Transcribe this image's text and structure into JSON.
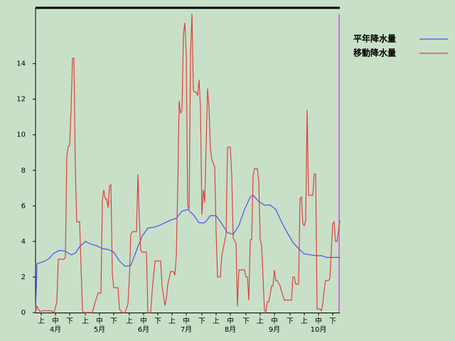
{
  "chart_data": {
    "type": "line",
    "xlim": [
      0,
      214
    ],
    "xticks": [
      {
        "value": 4,
        "label": "上"
      },
      {
        "value": 14,
        "label": "中"
      },
      {
        "value": 24,
        "label": "下"
      },
      {
        "value": 35,
        "label": "上"
      },
      {
        "value": 45,
        "label": "中"
      },
      {
        "value": 55,
        "label": "下"
      },
      {
        "value": 66,
        "label": "上"
      },
      {
        "value": 76,
        "label": "中"
      },
      {
        "value": 86,
        "label": "下"
      },
      {
        "value": 96,
        "label": "上"
      },
      {
        "value": 106,
        "label": "中"
      },
      {
        "value": 117,
        "label": "下"
      },
      {
        "value": 127,
        "label": "上"
      },
      {
        "value": 137,
        "label": "中"
      },
      {
        "value": 148,
        "label": "下"
      },
      {
        "value": 158,
        "label": "上"
      },
      {
        "value": 168,
        "label": "中"
      },
      {
        "value": 179,
        "label": "下"
      },
      {
        "value": 189,
        "label": "上"
      },
      {
        "value": 199,
        "label": "中"
      },
      {
        "value": 209,
        "label": "下"
      }
    ],
    "month_labels": [
      {
        "value": 14,
        "label": "4月"
      },
      {
        "value": 45,
        "label": "5月"
      },
      {
        "value": 76,
        "label": "6月"
      },
      {
        "value": 106,
        "label": "7月"
      },
      {
        "value": 137,
        "label": "8月"
      },
      {
        "value": 168,
        "label": "9月"
      },
      {
        "value": 199,
        "label": "10月"
      }
    ],
    "ylim": [
      0,
      17.1
    ],
    "yticks": [
      0,
      2,
      4,
      6,
      8,
      10,
      12,
      14
    ],
    "series": [
      {
        "name": "平年降水量",
        "color": "#5050e8",
        "x": [
          0,
          1,
          5,
          9,
          13,
          17,
          21,
          25,
          28,
          31,
          35,
          39,
          43,
          47,
          51,
          55,
          59,
          63,
          67,
          71,
          75,
          79,
          83,
          87,
          91,
          95,
          99,
          103,
          107,
          111,
          115,
          119,
          123,
          127,
          131,
          135,
          139,
          143,
          147,
          151,
          153,
          157,
          161,
          165,
          169,
          173,
          177,
          181,
          185,
          189,
          193,
          197,
          201,
          205,
          214
        ],
        "values": [
          0,
          2.75,
          2.85,
          3.0,
          3.35,
          3.5,
          3.45,
          3.25,
          3.35,
          3.7,
          4.0,
          3.85,
          3.75,
          3.6,
          3.55,
          3.4,
          2.9,
          2.6,
          2.65,
          3.5,
          4.3,
          4.75,
          4.8,
          4.9,
          5.05,
          5.2,
          5.3,
          5.7,
          5.8,
          5.5,
          5.05,
          5.05,
          5.45,
          5.45,
          5.0,
          4.5,
          4.4,
          4.9,
          5.8,
          6.5,
          6.6,
          6.25,
          6.05,
          6.05,
          5.8,
          5.1,
          4.5,
          3.95,
          3.6,
          3.3,
          3.25,
          3.2,
          3.2,
          3.1,
          3.1
        ]
      },
      {
        "name": "移動降水量",
        "color": "#e04040",
        "x": [
          0,
          1,
          3,
          5,
          11,
          13,
          15,
          16,
          20,
          21,
          22,
          23,
          24,
          25,
          26,
          27,
          28,
          29,
          31,
          33,
          34,
          40,
          42,
          44,
          46,
          47,
          48,
          49,
          50,
          51,
          52,
          53,
          54,
          55,
          58,
          59,
          61,
          63,
          65,
          66,
          67,
          68,
          71,
          72,
          73,
          74,
          75,
          78,
          79,
          81,
          82,
          84,
          88,
          89,
          91,
          92,
          93,
          95,
          97,
          98,
          99,
          100,
          101,
          102,
          103,
          104,
          105,
          106,
          107,
          108,
          109,
          110,
          111,
          112,
          113,
          114,
          115,
          116,
          117,
          118,
          119,
          120,
          121,
          122,
          123,
          124,
          125,
          126,
          127,
          128,
          130,
          131,
          134,
          135,
          137,
          138,
          139,
          141,
          142,
          143,
          147,
          148,
          149,
          150,
          151,
          152,
          153,
          154,
          156,
          157,
          158,
          159,
          161,
          162,
          163,
          164,
          165,
          166,
          167,
          168,
          169,
          170,
          172,
          173,
          175,
          180,
          181,
          182,
          183,
          185,
          186,
          187,
          188,
          189,
          190,
          191,
          192,
          195,
          196,
          197,
          198,
          200,
          201,
          202,
          203,
          204,
          206,
          207,
          209,
          210,
          211,
          212,
          214
        ],
        "values": [
          0,
          0.35,
          0.05,
          0.1,
          0.1,
          0,
          0.6,
          3.0,
          3.0,
          3.1,
          8.8,
          9.35,
          9.4,
          11.5,
          14.3,
          14.3,
          8.0,
          5.1,
          5.1,
          0.1,
          0,
          0,
          0.6,
          1.1,
          1.1,
          6.3,
          6.9,
          6.4,
          6.4,
          5.9,
          7.1,
          7.2,
          2.2,
          1.4,
          1.4,
          0.2,
          0,
          0,
          0.5,
          2.0,
          4.4,
          4.55,
          4.55,
          7.8,
          5.2,
          3.5,
          3.4,
          3.4,
          0,
          0,
          1.2,
          2.9,
          2.9,
          1.5,
          0.4,
          0.8,
          1.6,
          2.3,
          2.3,
          2.1,
          3.2,
          7.0,
          11.9,
          11.2,
          11.4,
          15.6,
          16.3,
          14.5,
          6.0,
          5.8,
          14.5,
          16.8,
          12.5,
          12.4,
          12.4,
          12.2,
          13.1,
          11.5,
          5.5,
          6.9,
          6.2,
          9.5,
          12.6,
          11.5,
          9.2,
          8.6,
          8.4,
          8.2,
          4.5,
          2.0,
          2.0,
          3.2,
          4.4,
          9.3,
          9.3,
          7.7,
          4.2,
          3.9,
          0.35,
          2.4,
          2.4,
          2.0,
          2.0,
          0.7,
          4.1,
          4.1,
          7.7,
          8.1,
          8.1,
          7.4,
          4.1,
          3.8,
          0.1,
          0.05,
          0.6,
          0.6,
          1.0,
          1.5,
          1.5,
          2.4,
          1.8,
          1.8,
          1.5,
          1.2,
          0.7,
          0.7,
          2.0,
          2.0,
          1.6,
          1.6,
          6.4,
          6.5,
          5.0,
          4.9,
          5.2,
          11.4,
          6.6,
          6.6,
          7.8,
          7.8,
          0.2,
          0.2,
          0.1,
          0.5,
          1.3,
          1.8,
          1.8,
          1.9,
          5.0,
          5.1,
          4.0,
          4.0,
          5.2
        ]
      }
    ]
  }
}
